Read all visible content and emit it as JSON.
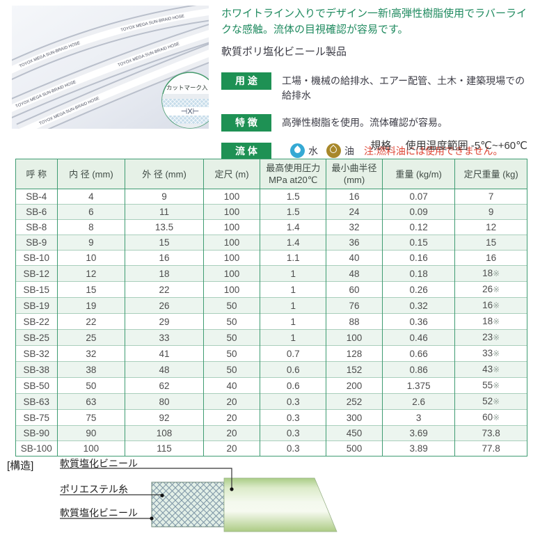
{
  "hero": {
    "headline": "ホワイトライン入りでデザイン一新!高弾性樹脂使用でラバーライクな感触。流体の目視確認が容易です。",
    "subline": "軟質ポリ塩化ビニール製品",
    "accent_green": "#1e9154",
    "headline_green": "#1f8a5f",
    "specs": [
      {
        "label": "用 途",
        "text": "工場・機械の給排水、エアー配管、土木・建築現場での給排水"
      },
      {
        "label": "特 徴",
        "text": "高弾性樹脂を使用。流体確認が容易。"
      }
    ],
    "fluid": {
      "label": "流 体",
      "items": [
        {
          "icon": "water-drop-icon",
          "name": "水",
          "color": "#35a9d4"
        },
        {
          "icon": "oil-drop-icon",
          "name": "油",
          "color": "#a8882a"
        }
      ],
      "note": "注:燃料油には使用できません。",
      "note_color": "#dd4433"
    }
  },
  "photo": {
    "print": "TOYOX   MEGA SUN-BRAID HOSE",
    "callout_label": "カットマーク入り",
    "cut_mark": "⊣X⊢"
  },
  "standard": {
    "label": "規格",
    "range": "使用温度範囲 -5℃~+60℃"
  },
  "table": {
    "headers": [
      "呼 称",
      "内 径 (mm)",
      "外 径 (mm)",
      "定尺 (m)",
      "最高使用圧力\nMPa at20℃",
      "最小曲半径\n(mm)",
      "重量 (kg/m)",
      "定尺重量 (kg)"
    ],
    "rows": [
      [
        "SB-4",
        "4",
        "9",
        "100",
        "1.5",
        "16",
        "0.07",
        "7"
      ],
      [
        "SB-6",
        "6",
        "11",
        "100",
        "1.5",
        "24",
        "0.09",
        "9"
      ],
      [
        "SB-8",
        "8",
        "13.5",
        "100",
        "1.4",
        "32",
        "0.12",
        "12"
      ],
      [
        "SB-9",
        "9",
        "15",
        "100",
        "1.4",
        "36",
        "0.15",
        "15"
      ],
      [
        "SB-10",
        "10",
        "16",
        "100",
        "1.1",
        "40",
        "0.16",
        "16"
      ],
      [
        "SB-12",
        "12",
        "18",
        "100",
        "1",
        "48",
        "0.18",
        "18※"
      ],
      [
        "SB-15",
        "15",
        "22",
        "100",
        "1",
        "60",
        "0.26",
        "26※"
      ],
      [
        "SB-19",
        "19",
        "26",
        "50",
        "1",
        "76",
        "0.32",
        "16※"
      ],
      [
        "SB-22",
        "22",
        "29",
        "50",
        "1",
        "88",
        "0.36",
        "18※"
      ],
      [
        "SB-25",
        "25",
        "33",
        "50",
        "1",
        "100",
        "0.46",
        "23※"
      ],
      [
        "SB-32",
        "32",
        "41",
        "50",
        "0.7",
        "128",
        "0.66",
        "33※"
      ],
      [
        "SB-38",
        "38",
        "48",
        "50",
        "0.6",
        "152",
        "0.86",
        "43※"
      ],
      [
        "SB-50",
        "50",
        "62",
        "40",
        "0.6",
        "200",
        "1.375",
        "55※"
      ],
      [
        "SB-63",
        "63",
        "80",
        "20",
        "0.3",
        "252",
        "2.6",
        "52※"
      ],
      [
        "SB-75",
        "75",
        "92",
        "20",
        "0.3",
        "300",
        "3",
        "60※"
      ],
      [
        "SB-90",
        "90",
        "108",
        "20",
        "0.3",
        "450",
        "3.69",
        "73.8"
      ],
      [
        "SB-100",
        "100",
        "115",
        "20",
        "0.3",
        "500",
        "3.89",
        "77.8"
      ]
    ]
  },
  "structure": {
    "caption": "[構造]",
    "labels": [
      "軟質塩化ビニール",
      "ポリエステル糸",
      "軟質塩化ビニール"
    ]
  }
}
